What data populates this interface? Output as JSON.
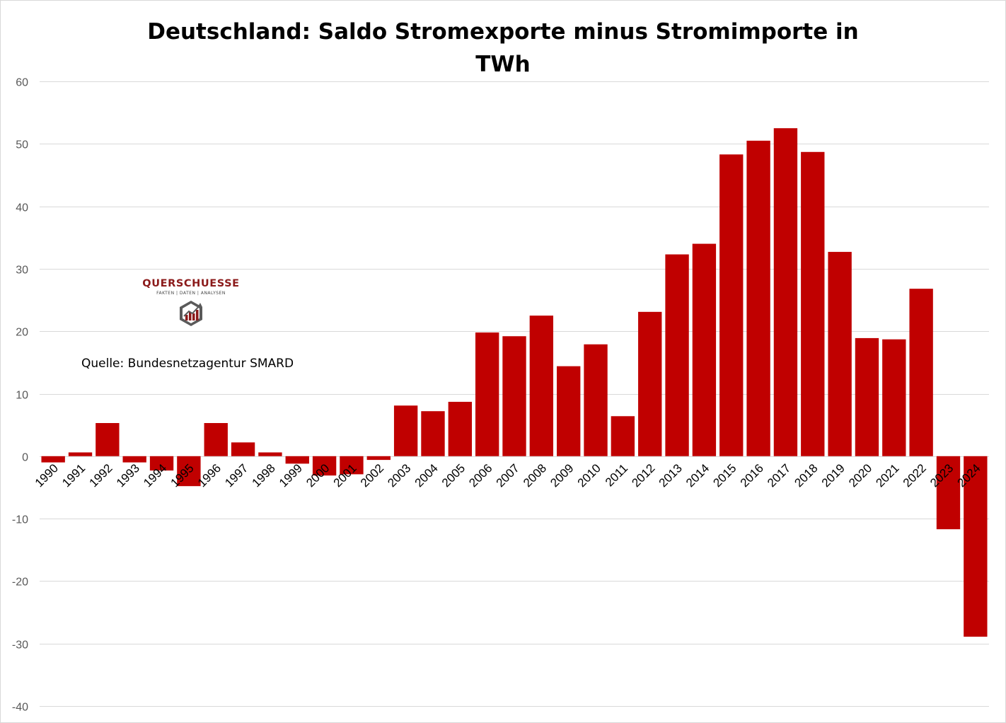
{
  "chart_data": {
    "type": "bar",
    "title_lines": [
      "Deutschland: Saldo Stromexporte minus Stromimporte in",
      "TWh"
    ],
    "xlabel": "",
    "ylabel": "",
    "ylim": [
      -40,
      60
    ],
    "yticks": [
      60,
      50,
      40,
      30,
      20,
      10,
      0,
      -10,
      -20,
      -30,
      -40
    ],
    "grid": true,
    "legend": "none",
    "bar_color": "#c00000",
    "categories": [
      "1990",
      "1991",
      "1992",
      "1993",
      "1994",
      "1995",
      "1996",
      "1997",
      "1998",
      "1999",
      "2000",
      "2001",
      "2002",
      "2003",
      "2004",
      "2005",
      "2006",
      "2007",
      "2008",
      "2009",
      "2010",
      "2011",
      "2012",
      "2013",
      "2014",
      "2015",
      "2016",
      "2017",
      "2018",
      "2019",
      "2020",
      "2021",
      "2022",
      "2023",
      "2024"
    ],
    "values": [
      -1.0,
      0.6,
      5.3,
      -1.0,
      -2.3,
      -4.8,
      5.3,
      2.2,
      0.6,
      -1.2,
      -3.1,
      -2.9,
      -0.6,
      8.1,
      7.2,
      8.7,
      19.8,
      19.2,
      22.5,
      14.4,
      17.9,
      6.4,
      23.1,
      32.3,
      34.0,
      48.3,
      50.5,
      52.5,
      48.7,
      32.7,
      18.9,
      18.7,
      26.8,
      -11.7,
      -28.9
    ]
  },
  "annotations": {
    "source": "Quelle:  Bundesnetzagentur SMARD"
  },
  "logo": {
    "name": "QUERSCHUESSE",
    "tagline": "FAKTEN | DATEN | ANALYSEN",
    "icon": "hexagon-bar-chart-icon"
  }
}
